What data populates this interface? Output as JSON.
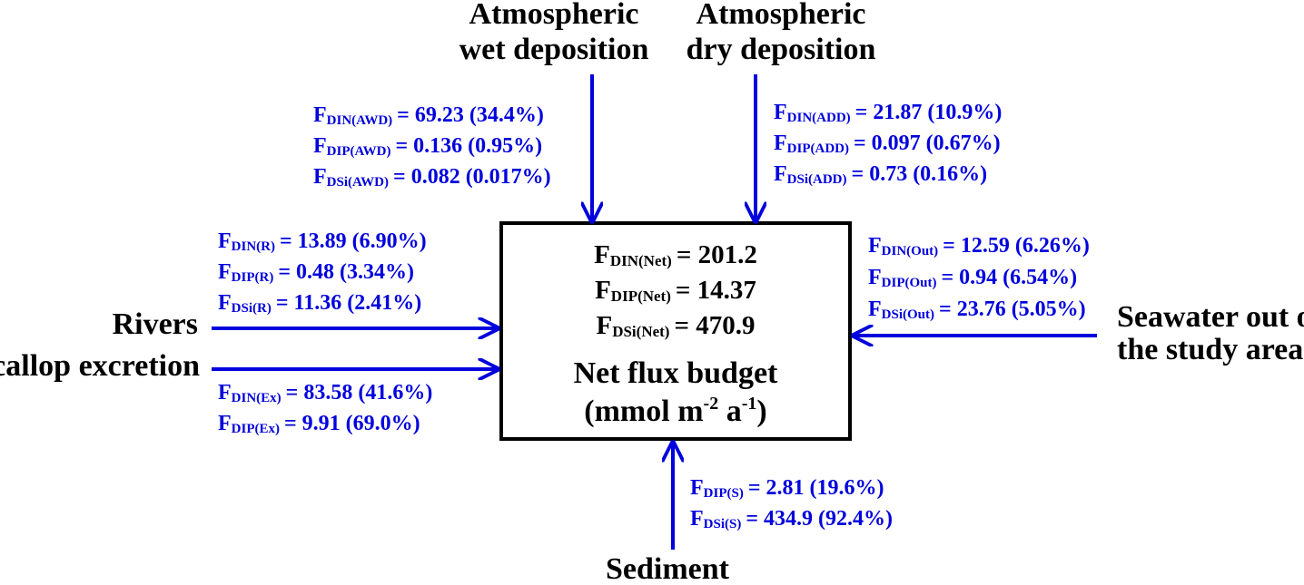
{
  "sources": {
    "wet": [
      "Atmospheric",
      "wet deposition"
    ],
    "dry": [
      "Atmospheric",
      "dry deposition"
    ],
    "rivers": [
      "Rivers"
    ],
    "scallop": [
      "Scallop excretion"
    ],
    "seawater": [
      "Seawater out of",
      "the study area"
    ],
    "sediment": [
      "Sediment"
    ]
  },
  "fluxes": {
    "wet": [
      {
        "symbol": "F",
        "subscript": "DIN(AWD)",
        "value": "= 69.23 (34.4%)"
      },
      {
        "symbol": "F",
        "subscript": "DIP(AWD)",
        "value": "= 0.136 (0.95%)"
      },
      {
        "symbol": "F",
        "subscript": "DSi(AWD)",
        "value": "= 0.082 (0.017%)"
      }
    ],
    "dry": [
      {
        "symbol": "F",
        "subscript": "DIN(ADD)",
        "value": "= 21.87 (10.9%)"
      },
      {
        "symbol": "F",
        "subscript": "DIP(ADD)",
        "value": "= 0.097 (0.67%)"
      },
      {
        "symbol": "F",
        "subscript": "DSi(ADD)",
        "value": "= 0.73 (0.16%)"
      }
    ],
    "rivers": [
      {
        "symbol": "F",
        "subscript": "DIN(R)",
        "value": "= 13.89 (6.90%)"
      },
      {
        "symbol": "F",
        "subscript": "DIP(R)",
        "value": "= 0.48 (3.34%)"
      },
      {
        "symbol": "F",
        "subscript": "DSi(R)",
        "value": "= 11.36 (2.41%)"
      }
    ],
    "scallop": [
      {
        "symbol": "F",
        "subscript": "DIN(Ex)",
        "value": "= 83.58 (41.6%)"
      },
      {
        "symbol": "F",
        "subscript": "DIP(Ex)",
        "value": "= 9.91 (69.0%)"
      }
    ],
    "seawater": [
      {
        "symbol": "F",
        "subscript": "DIN(Out)",
        "value": "= 12.59 (6.26%)"
      },
      {
        "symbol": "F",
        "subscript": "DIP(Out)",
        "value": "= 0.94 (6.54%)"
      },
      {
        "symbol": "F",
        "subscript": "DSi(Out)",
        "value": "= 23.76 (5.05%)"
      }
    ],
    "sediment": [
      {
        "symbol": "F",
        "subscript": "DIP(S)",
        "value": "= 2.81 (19.6%)"
      },
      {
        "symbol": "F",
        "subscript": "DSi(S)",
        "value": "= 434.9 (92.4%)"
      }
    ]
  },
  "box": {
    "net": [
      {
        "symbol": "F",
        "subscript": "DIN(Net)",
        "value": "= 201.2"
      },
      {
        "symbol": "F",
        "subscript": "DIP(Net)",
        "value": "= 14.37"
      },
      {
        "symbol": "F",
        "subscript": "DSi(Net)",
        "value": "= 470.9"
      }
    ],
    "title": "Net flux budget",
    "unit": [
      "(mmol m",
      "-2",
      " a",
      "-1",
      ")"
    ]
  }
}
